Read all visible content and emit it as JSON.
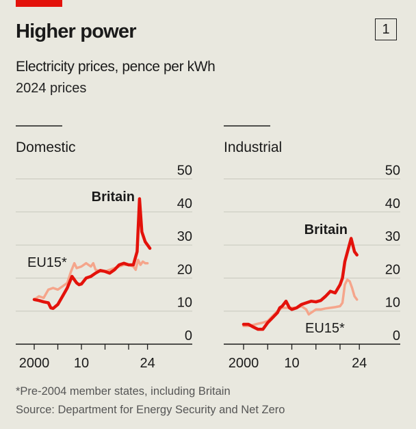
{
  "header": {
    "title": "Higher power",
    "badge": "1",
    "subtitle": "Electricity prices, pence per kWh",
    "unit_note": "2024 prices"
  },
  "footer": {
    "note": "*Pre-2004 member states, including Britain",
    "source": "Source: Department for Energy Security and Net Zero"
  },
  "colors": {
    "britain": "#e3120b",
    "eu15": "#f5a58b",
    "grid": "#c8c7bd",
    "background": "#e9e8df"
  },
  "chart_data": [
    {
      "type": "line",
      "title": "Domestic",
      "ylim": [
        0,
        50
      ],
      "yticks": [
        "0",
        "10",
        "20",
        "30",
        "40",
        "50"
      ],
      "xlim": [
        2000,
        2024
      ],
      "xtick_years": [
        2000,
        2005,
        2010,
        2015,
        2020,
        2024
      ],
      "xtick_labels": [
        "2000",
        "10",
        "24"
      ],
      "series": [
        {
          "name": "Britain",
          "x": [
            2000,
            2001,
            2002,
            2003,
            2003.5,
            2004,
            2005,
            2006,
            2007,
            2008,
            2009,
            2009.5,
            2010,
            2011,
            2012,
            2013,
            2014,
            2015,
            2016,
            2017,
            2018,
            2019,
            2020,
            2021,
            2021.8,
            2022.3,
            2022.8,
            2023.5,
            2024.5
          ],
          "y": [
            13.5,
            13.2,
            12.8,
            12.5,
            11,
            10.8,
            12,
            14.5,
            17,
            20.5,
            18.5,
            18,
            18.2,
            20,
            20.5,
            21.5,
            22.3,
            22,
            21.5,
            22.5,
            24,
            24.5,
            24,
            24,
            28,
            44,
            34,
            31,
            29
          ]
        },
        {
          "name": "EU15*",
          "x": [
            2000,
            2001,
            2002,
            2003,
            2004,
            2005,
            2006,
            2007,
            2007.8,
            2008.5,
            2009,
            2010,
            2011,
            2012,
            2012.5,
            2013,
            2014,
            2015,
            2016,
            2017,
            2018,
            2019,
            2020,
            2021,
            2021.5,
            2022,
            2022.5,
            2023,
            2023.5,
            2024
          ],
          "y": [
            13.5,
            14.5,
            14,
            16.5,
            17,
            16.5,
            17.5,
            18.5,
            22,
            24.5,
            23,
            23.5,
            24.5,
            23.5,
            24.5,
            22.5,
            22,
            22,
            22.5,
            23,
            23.5,
            24,
            24,
            23.5,
            22.5,
            25.5,
            24,
            25,
            24.5,
            24.5
          ]
        }
      ]
    },
    {
      "type": "line",
      "title": "Industrial",
      "ylim": [
        0,
        50
      ],
      "yticks": [
        "0",
        "10",
        "20",
        "30",
        "40",
        "50"
      ],
      "xlim": [
        2000,
        2024
      ],
      "xtick_years": [
        2000,
        2005,
        2010,
        2015,
        2020,
        2024
      ],
      "xtick_labels": [
        "2000",
        "10",
        "24"
      ],
      "series": [
        {
          "name": "Britain",
          "x": [
            2000,
            2001,
            2002,
            2003,
            2004,
            2005,
            2006,
            2007,
            2007.5,
            2008,
            2008.8,
            2009.5,
            2010,
            2011,
            2012,
            2013,
            2014,
            2015,
            2016,
            2017,
            2018,
            2019,
            2020,
            2020.5,
            2021,
            2022.3,
            2023,
            2023.5
          ],
          "y": [
            6,
            6,
            5.2,
            4.5,
            4.5,
            6.5,
            8,
            9.5,
            11,
            11.5,
            13,
            11,
            10.5,
            11,
            12,
            12.5,
            13,
            12.8,
            13.2,
            14.5,
            16,
            15.5,
            18,
            20,
            25,
            32,
            28,
            27
          ]
        },
        {
          "name": "EU15*",
          "x": [
            2000,
            2001,
            2002,
            2003,
            2004,
            2005,
            2006,
            2007,
            2008,
            2009,
            2010,
            2011,
            2012,
            2013,
            2013.5,
            2014,
            2015,
            2016,
            2017,
            2018,
            2019,
            2020,
            2020.5,
            2021,
            2021.5,
            2022,
            2022.5,
            2023,
            2023.5
          ],
          "y": [
            5.5,
            5.5,
            5.8,
            6.2,
            6.5,
            7,
            8.5,
            10,
            11,
            11,
            11,
            11,
            11.5,
            10.5,
            9,
            9.5,
            10.5,
            10.5,
            10.8,
            11,
            11.2,
            11.5,
            12.5,
            18,
            19.5,
            19,
            17,
            14.5,
            13.5
          ]
        }
      ]
    }
  ]
}
